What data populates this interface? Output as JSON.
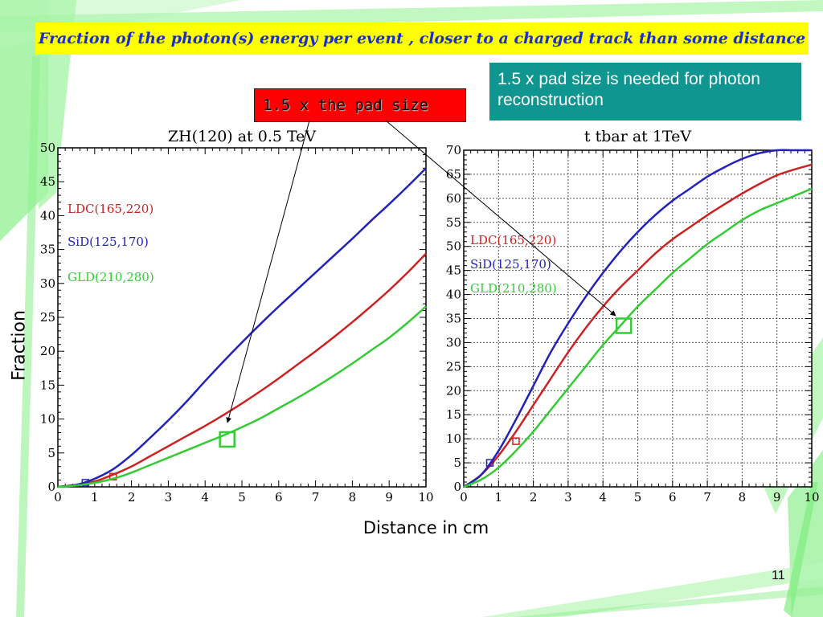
{
  "slide": {
    "title": "Fraction of the photon(s) energy per event , closer to a charged track than some distance",
    "note": "1.5 x pad size is needed for photon reconstruction",
    "pad_label": "1.5 x the pad size",
    "y_axis_label": "Fraction",
    "x_axis_label": "Distance in cm",
    "page_number": "11",
    "colors": {
      "title_bg": "#ffff00",
      "title_text": "#1a2bd8",
      "note_bg": "#0f9690",
      "pad_bg": "#ff0000",
      "deco": "#90f090"
    }
  },
  "chart_data": [
    {
      "type": "line",
      "title": "ZH(120) at 0.5 TeV",
      "xlim": [
        0,
        10
      ],
      "ylim": [
        0,
        50
      ],
      "xticks": [
        0,
        1,
        2,
        3,
        4,
        5,
        6,
        7,
        8,
        9,
        10
      ],
      "yticks": [
        0,
        5,
        10,
        15,
        20,
        25,
        30,
        35,
        40,
        45,
        50
      ],
      "grid": false,
      "series": [
        {
          "name": "LDC(165,220)",
          "color": "#cc2222",
          "x": [
            0,
            0.5,
            1,
            1.5,
            2,
            2.5,
            3,
            3.5,
            4,
            4.5,
            5,
            5.5,
            6,
            6.5,
            7,
            7.5,
            8,
            8.5,
            9,
            9.5,
            10
          ],
          "y": [
            0,
            0.3,
            0.8,
            1.8,
            3.0,
            4.5,
            6.0,
            7.5,
            9.0,
            10.6,
            12.3,
            14.1,
            16.0,
            18.0,
            20.0,
            22.1,
            24.3,
            26.6,
            29.0,
            31.6,
            34.4
          ],
          "marker": {
            "x": 1.5,
            "y": 1.5,
            "size": "small"
          }
        },
        {
          "name": "SiD(125,170)",
          "color": "#2222bb",
          "x": [
            0,
            0.5,
            1,
            1.5,
            2,
            2.5,
            3,
            3.5,
            4,
            4.5,
            5,
            5.5,
            6,
            6.5,
            7,
            7.5,
            8,
            8.5,
            9,
            9.5,
            10
          ],
          "y": [
            0,
            0.3,
            1.2,
            2.6,
            4.7,
            7.2,
            9.8,
            12.6,
            15.6,
            18.5,
            21.3,
            24.0,
            26.6,
            29.1,
            31.6,
            34.1,
            36.6,
            39.2,
            41.7,
            44.3,
            47.0
          ],
          "marker": {
            "x": 0.75,
            "y": 0.6,
            "size": "small"
          }
        },
        {
          "name": "GLD(210,280)",
          "color": "#33cc33",
          "x": [
            0,
            0.5,
            1,
            1.5,
            2,
            2.5,
            3,
            3.5,
            4,
            4.5,
            5,
            5.5,
            6,
            6.5,
            7,
            7.5,
            8,
            8.5,
            9,
            9.5,
            10
          ],
          "y": [
            0,
            0.2,
            0.6,
            1.2,
            2.1,
            3.2,
            4.3,
            5.4,
            6.5,
            7.6,
            8.8,
            10.1,
            11.6,
            13.1,
            14.7,
            16.4,
            18.2,
            20.1,
            22.0,
            24.2,
            26.6
          ],
          "marker": {
            "x": 4.6,
            "y": 7.0,
            "size": "large"
          }
        }
      ]
    },
    {
      "type": "line",
      "title": "t tbar at 1TeV",
      "xlim": [
        0,
        10
      ],
      "ylim": [
        0,
        70
      ],
      "xticks": [
        0,
        1,
        2,
        3,
        4,
        5,
        6,
        7,
        8,
        9,
        10
      ],
      "yticks": [
        0,
        5,
        10,
        15,
        20,
        25,
        30,
        35,
        40,
        45,
        50,
        55,
        60,
        65,
        70
      ],
      "grid": true,
      "series": [
        {
          "name": "LDC(165,220)",
          "color": "#cc2222",
          "x": [
            0,
            0.5,
            1,
            1.5,
            2,
            2.5,
            3,
            3.5,
            4,
            4.5,
            5,
            5.5,
            6,
            6.5,
            7,
            7.5,
            8,
            8.5,
            9,
            9.5,
            10
          ],
          "y": [
            0,
            2.5,
            6.5,
            11.5,
            17,
            22.5,
            28,
            33,
            37.5,
            41.5,
            45,
            48.5,
            51.5,
            54,
            56.5,
            58.8,
            61,
            63,
            64.8,
            66,
            67
          ],
          "marker": {
            "x": 1.5,
            "y": 9.5,
            "size": "small"
          }
        },
        {
          "name": "SiD(125,170)",
          "color": "#2222bb",
          "x": [
            0,
            0.5,
            1,
            1.5,
            2,
            2.5,
            3,
            3.5,
            4,
            4.5,
            5,
            5.5,
            6,
            6.5,
            7,
            7.5,
            8,
            8.5,
            9,
            9.5,
            10
          ],
          "y": [
            0,
            2.5,
            7.5,
            14,
            21,
            28,
            34,
            39.5,
            44.5,
            49,
            53,
            56.5,
            59.5,
            62,
            64.5,
            66.5,
            68.2,
            69.4,
            70,
            70,
            70
          ],
          "marker": {
            "x": 0.75,
            "y": 5.0,
            "size": "small"
          }
        },
        {
          "name": "GLD(210,280)",
          "color": "#33cc33",
          "x": [
            0,
            0.5,
            1,
            1.5,
            2,
            2.5,
            3,
            3.5,
            4,
            4.5,
            5,
            5.5,
            6,
            6.5,
            7,
            7.5,
            8,
            8.5,
            9,
            9.5,
            10
          ],
          "y": [
            0,
            1.5,
            4,
            7.5,
            11.5,
            16,
            20.5,
            25,
            29.5,
            33.5,
            37.5,
            41,
            44.5,
            47.5,
            50.5,
            53,
            55.5,
            57.5,
            59,
            60.5,
            62
          ],
          "marker": {
            "x": 4.6,
            "y": 33.5,
            "size": "large"
          }
        }
      ]
    }
  ]
}
